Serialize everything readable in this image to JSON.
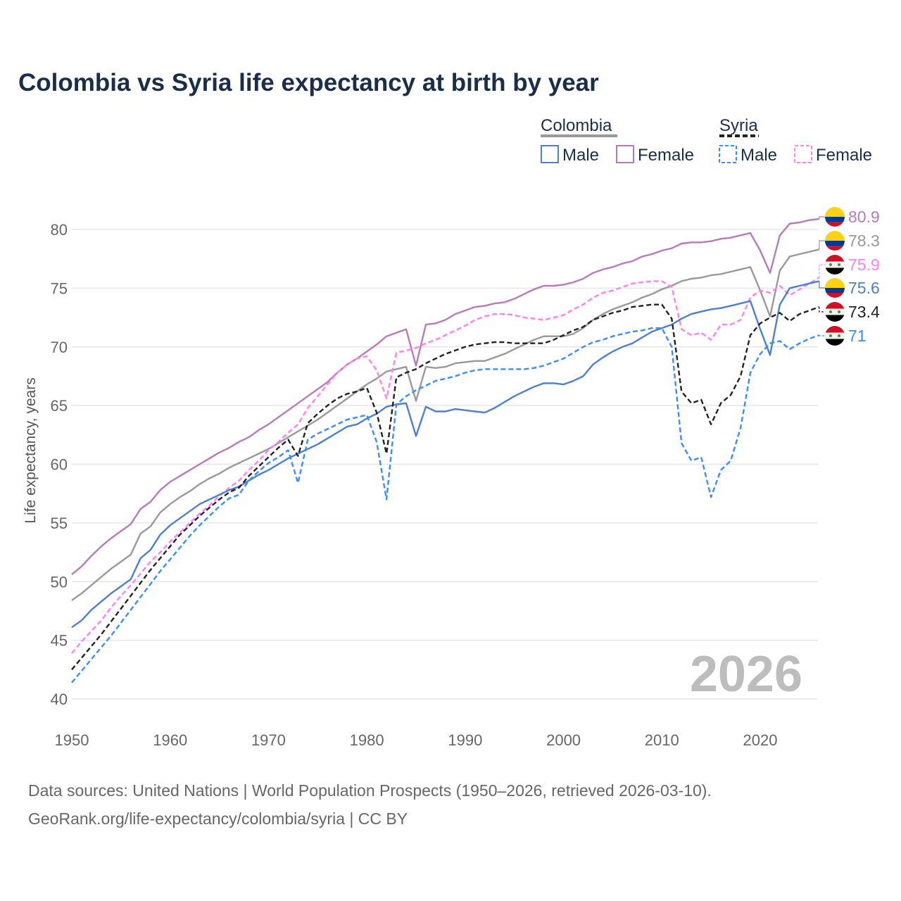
{
  "chart_data": {
    "type": "line",
    "title": "Colombia vs Syria life expectancy at birth by year",
    "xlabel": "",
    "ylabel": "Life expectancy, years",
    "xlim": [
      1950,
      2026
    ],
    "ylim": [
      40,
      82
    ],
    "x_ticks": [
      1950,
      1960,
      1970,
      1980,
      1990,
      2000,
      2010,
      2020
    ],
    "y_ticks": [
      40,
      45,
      50,
      55,
      60,
      65,
      70,
      75,
      80
    ],
    "grid": true,
    "watermark": "2026",
    "legend": {
      "placement": "top-right",
      "groups": [
        {
          "label": "Colombia",
          "style": "solid",
          "color": "#999999",
          "items": [
            "Male",
            "Female"
          ]
        },
        {
          "label": "Syria",
          "style": "dashed",
          "color": "#222222",
          "items": [
            "Male",
            "Female"
          ]
        }
      ]
    },
    "x_start": 1950,
    "series": [
      {
        "name": "Colombia Female",
        "country": "Colombia",
        "color": "#b77bb9",
        "dash": false,
        "end_label": "80.9",
        "values": [
          50.6,
          51.3,
          52.2,
          53.0,
          53.7,
          54.3,
          54.9,
          56.2,
          56.8,
          57.8,
          58.5,
          59.0,
          59.5,
          60.0,
          60.5,
          61.0,
          61.4,
          61.9,
          62.3,
          62.9,
          63.4,
          64.0,
          64.6,
          65.2,
          65.8,
          66.4,
          67.0,
          67.8,
          68.5,
          69.0,
          69.6,
          70.2,
          70.9,
          71.2,
          71.5,
          68.4,
          71.9,
          72.0,
          72.3,
          72.8,
          73.1,
          73.4,
          73.5,
          73.7,
          73.8,
          74.1,
          74.5,
          74.9,
          75.2,
          75.2,
          75.3,
          75.5,
          75.8,
          76.3,
          76.6,
          76.8,
          77.1,
          77.3,
          77.7,
          77.9,
          78.2,
          78.4,
          78.8,
          78.9,
          78.9,
          79.0,
          79.2,
          79.3,
          79.5,
          79.7,
          78.2,
          76.3,
          79.5,
          80.5,
          80.6,
          80.8,
          80.9
        ]
      },
      {
        "name": "Colombia Total",
        "country": "Colombia",
        "color": "#999999",
        "dash": false,
        "end_label": "78.3",
        "values": [
          48.4,
          49.0,
          49.7,
          50.4,
          51.1,
          51.7,
          52.3,
          54.1,
          54.7,
          55.9,
          56.6,
          57.2,
          57.7,
          58.3,
          58.8,
          59.2,
          59.7,
          60.1,
          60.5,
          60.9,
          61.3,
          61.8,
          62.3,
          62.8,
          63.3,
          63.8,
          64.4,
          65.0,
          65.6,
          66.2,
          66.8,
          67.3,
          67.9,
          68.1,
          68.3,
          65.4,
          68.3,
          68.2,
          68.3,
          68.6,
          68.7,
          68.8,
          68.8,
          69.1,
          69.4,
          69.8,
          70.2,
          70.6,
          70.9,
          70.9,
          70.9,
          71.1,
          71.6,
          72.3,
          72.8,
          73.2,
          73.5,
          73.8,
          74.2,
          74.5,
          74.9,
          75.2,
          75.6,
          75.8,
          75.9,
          76.1,
          76.2,
          76.4,
          76.6,
          76.8,
          74.8,
          72.6,
          76.5,
          77.7,
          77.9,
          78.1,
          78.3
        ]
      },
      {
        "name": "Syria Female",
        "country": "Syria",
        "color": "#ff80f0",
        "dash": true,
        "end_label": "75.9",
        "values": [
          43.9,
          44.9,
          45.8,
          46.7,
          47.8,
          48.8,
          49.7,
          50.7,
          51.7,
          52.5,
          53.4,
          54.2,
          55.0,
          55.8,
          56.5,
          57.3,
          58.0,
          58.6,
          59.5,
          60.3,
          61.2,
          61.9,
          62.7,
          63.4,
          64.8,
          65.8,
          66.8,
          67.8,
          68.5,
          69.0,
          69.2,
          68.0,
          65.6,
          69.5,
          69.7,
          69.9,
          70.3,
          70.6,
          71.0,
          71.4,
          71.8,
          72.3,
          72.6,
          72.8,
          72.8,
          72.7,
          72.5,
          72.4,
          72.3,
          72.5,
          72.7,
          73.2,
          73.6,
          74.2,
          74.6,
          74.8,
          75.1,
          75.4,
          75.5,
          75.6,
          75.6,
          75.1,
          71.5,
          71.0,
          71.2,
          70.6,
          71.9,
          71.9,
          72.3,
          74.2,
          74.8,
          74.6,
          75.2,
          74.4,
          74.9,
          75.4,
          75.9
        ]
      },
      {
        "name": "Colombia Male",
        "country": "Colombia",
        "color": "#4e7fcb",
        "dash": false,
        "end_label": "75.6",
        "values": [
          46.1,
          46.7,
          47.6,
          48.3,
          49.0,
          49.6,
          50.2,
          52.0,
          52.7,
          54.0,
          54.8,
          55.4,
          56.0,
          56.6,
          57.0,
          57.4,
          57.8,
          58.1,
          58.6,
          59.1,
          59.5,
          60.0,
          60.5,
          60.9,
          61.3,
          61.7,
          62.2,
          62.7,
          63.2,
          63.4,
          63.9,
          64.3,
          64.9,
          65.1,
          65.2,
          62.4,
          64.9,
          64.5,
          64.5,
          64.7,
          64.6,
          64.5,
          64.4,
          64.8,
          65.3,
          65.8,
          66.2,
          66.6,
          66.9,
          66.9,
          66.8,
          67.1,
          67.5,
          68.5,
          69.1,
          69.6,
          70.0,
          70.3,
          70.8,
          71.3,
          71.6,
          71.9,
          72.4,
          72.8,
          73.0,
          73.2,
          73.3,
          73.5,
          73.7,
          73.9,
          71.5,
          69.3,
          73.6,
          75.0,
          75.2,
          75.4,
          75.6
        ]
      },
      {
        "name": "Syria Total",
        "country": "Syria",
        "color": "#222222",
        "dash": true,
        "end_label": "73.4",
        "values": [
          42.5,
          43.5,
          44.5,
          45.5,
          46.6,
          47.7,
          48.8,
          49.9,
          51.0,
          52.0,
          53.0,
          54.0,
          54.8,
          55.6,
          56.3,
          57.0,
          57.6,
          58.0,
          59.0,
          59.8,
          60.6,
          61.4,
          62.1,
          60.7,
          63.5,
          64.3,
          65.0,
          65.6,
          66.0,
          66.2,
          66.5,
          64.4,
          60.9,
          67.4,
          67.8,
          68.1,
          68.6,
          69.0,
          69.4,
          69.7,
          70.0,
          70.2,
          70.3,
          70.4,
          70.4,
          70.3,
          70.3,
          70.3,
          70.3,
          70.6,
          71.0,
          71.4,
          71.7,
          72.3,
          72.6,
          72.9,
          73.1,
          73.4,
          73.5,
          73.6,
          73.6,
          72.4,
          66.2,
          65.2,
          65.5,
          63.4,
          65.2,
          65.9,
          67.5,
          71.0,
          72.0,
          72.5,
          72.9,
          72.2,
          72.8,
          73.1,
          73.4
        ]
      },
      {
        "name": "Syria Male",
        "country": "Syria",
        "color": "#3a8cff",
        "dash": true,
        "end_label": "71",
        "values": [
          41.4,
          42.4,
          43.4,
          44.4,
          45.4,
          46.5,
          47.6,
          48.7,
          49.8,
          50.9,
          51.9,
          52.9,
          53.9,
          54.8,
          55.6,
          56.4,
          57.1,
          57.4,
          58.6,
          59.4,
          60.1,
          60.6,
          61.2,
          58.4,
          62.1,
          62.6,
          63.0,
          63.4,
          63.8,
          64.0,
          64.2,
          61.9,
          57.0,
          65.1,
          65.8,
          66.3,
          66.7,
          67.1,
          67.3,
          67.5,
          67.8,
          68.0,
          68.1,
          68.1,
          68.1,
          68.1,
          68.1,
          68.2,
          68.4,
          68.7,
          69.0,
          69.5,
          70.0,
          70.4,
          70.6,
          70.9,
          71.1,
          71.3,
          71.4,
          71.6,
          71.6,
          70.0,
          61.8,
          60.3,
          60.6,
          57.2,
          59.5,
          60.3,
          63.1,
          67.8,
          69.4,
          70.3,
          70.5,
          69.8,
          70.3,
          70.7,
          71.0
        ]
      }
    ]
  },
  "legend_labels": {
    "colombia": "Colombia",
    "syria": "Syria",
    "male": "Male",
    "female": "Female"
  },
  "footer": {
    "line1": "Data sources: United Nations | World Population Prospects (1950–2026, retrieved 2026-03-10).",
    "line2": "GeoRank.org/life-expectancy/colombia/syria | CC BY"
  }
}
